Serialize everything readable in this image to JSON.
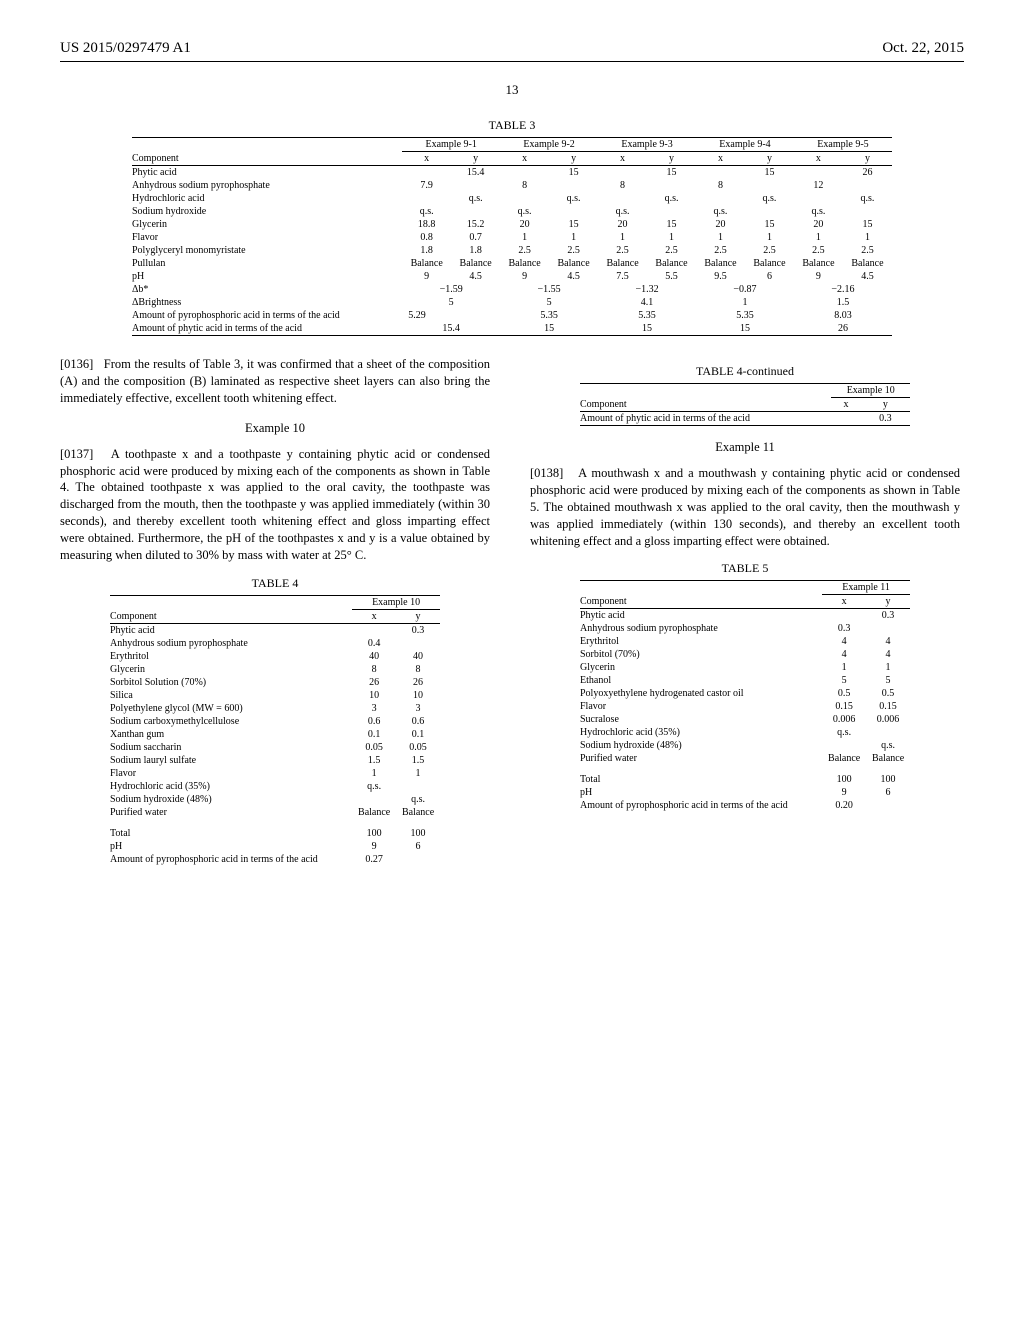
{
  "header": {
    "patent_no": "US 2015/0297479 A1",
    "date": "Oct. 22, 2015",
    "page": "13"
  },
  "table3": {
    "title": "TABLE 3",
    "group_headers": [
      "Example 9-1",
      "Example 9-2",
      "Example 9-3",
      "Example 9-4",
      "Example 9-5"
    ],
    "sub_headers": [
      "x",
      "y",
      "x",
      "y",
      "x",
      "y",
      "x",
      "y",
      "x",
      "y"
    ],
    "rows": [
      {
        "label": "Phytic acid",
        "vals": [
          "",
          "15.4",
          "",
          "15",
          "",
          "15",
          "",
          "15",
          "",
          "26"
        ]
      },
      {
        "label": "Anhydrous sodium pyrophosphate",
        "vals": [
          "7.9",
          "",
          "8",
          "",
          "8",
          "",
          "8",
          "",
          "12",
          ""
        ]
      },
      {
        "label": "Hydrochloric acid",
        "vals": [
          "",
          "q.s.",
          "",
          "q.s.",
          "",
          "q.s.",
          "",
          "q.s.",
          "",
          "q.s."
        ]
      },
      {
        "label": "Sodium hydroxide",
        "vals": [
          "q.s.",
          "",
          "q.s.",
          "",
          "q.s.",
          "",
          "q.s.",
          "",
          "q.s.",
          ""
        ]
      },
      {
        "label": "Glycerin",
        "vals": [
          "18.8",
          "15.2",
          "20",
          "15",
          "20",
          "15",
          "20",
          "15",
          "20",
          "15"
        ]
      },
      {
        "label": "Flavor",
        "vals": [
          "0.8",
          "0.7",
          "1",
          "1",
          "1",
          "1",
          "1",
          "1",
          "1",
          "1"
        ]
      },
      {
        "label": "Polyglyceryl monomyristate",
        "vals": [
          "1.8",
          "1.8",
          "2.5",
          "2.5",
          "2.5",
          "2.5",
          "2.5",
          "2.5",
          "2.5",
          "2.5"
        ]
      },
      {
        "label": "Pullulan",
        "vals": [
          "Balance",
          "Balance",
          "Balance",
          "Balance",
          "Balance",
          "Balance",
          "Balance",
          "Balance",
          "Balance",
          "Balance"
        ]
      },
      {
        "label": "pH",
        "vals": [
          "9",
          "4.5",
          "9",
          "4.5",
          "7.5",
          "5.5",
          "9.5",
          "6",
          "9",
          "4.5"
        ]
      }
    ],
    "span_rows": [
      {
        "label": "Δb*",
        "vals": [
          "−1.59",
          "−1.55",
          "−1.32",
          "−0.87",
          "−2.16"
        ]
      },
      {
        "label": "ΔBrightness",
        "vals": [
          "5",
          "5",
          "4.1",
          "1",
          "1.5"
        ]
      },
      {
        "label": "Amount of pyrophosphoric acid in terms of the acid",
        "vals": [
          "5.29",
          "5.35",
          "5.35",
          "5.35",
          "8.03"
        ],
        "left": true
      },
      {
        "label": "Amount of phytic acid in terms of the acid",
        "vals": [
          "15.4",
          "15",
          "15",
          "15",
          "26"
        ]
      }
    ]
  },
  "para0136": {
    "num": "[0136]",
    "text": "From the results of Table 3, it was confirmed that a sheet of the composition (A) and the composition (B) laminated as respective sheet layers can also bring the immediately effective, excellent tooth whitening effect."
  },
  "example10_heading": "Example 10",
  "para0137": {
    "num": "[0137]",
    "text": "A toothpaste x and a toothpaste y containing phytic acid or condensed phosphoric acid were produced by mixing each of the components as shown in Table 4. The obtained toothpaste x was applied to the oral cavity, the toothpaste was discharged from the mouth, then the toothpaste y was applied immediately (within 30 seconds), and thereby excellent tooth whitening effect and gloss imparting effect were obtained. Furthermore, the pH of the toothpastes x and y is a value obtained by measuring when diluted to 30% by mass with water at 25° C."
  },
  "table4": {
    "title": "TABLE 4",
    "group_header": "Example 10",
    "sub_headers": [
      "x",
      "y"
    ],
    "rows": [
      {
        "label": "Phytic acid",
        "vals": [
          "",
          "0.3"
        ]
      },
      {
        "label": "Anhydrous sodium pyrophosphate",
        "vals": [
          "0.4",
          ""
        ]
      },
      {
        "label": "Erythritol",
        "vals": [
          "40",
          "40"
        ]
      },
      {
        "label": "Glycerin",
        "vals": [
          "8",
          "8"
        ]
      },
      {
        "label": "Sorbitol Solution (70%)",
        "vals": [
          "26",
          "26"
        ]
      },
      {
        "label": "Silica",
        "vals": [
          "10",
          "10"
        ]
      },
      {
        "label": "Polyethylene glycol (MW = 600)",
        "vals": [
          "3",
          "3"
        ]
      },
      {
        "label": "Sodium carboxymethylcellulose",
        "vals": [
          "0.6",
          "0.6"
        ]
      },
      {
        "label": "Xanthan gum",
        "vals": [
          "0.1",
          "0.1"
        ]
      },
      {
        "label": "Sodium saccharin",
        "vals": [
          "0.05",
          "0.05"
        ]
      },
      {
        "label": "Sodium lauryl sulfate",
        "vals": [
          "1.5",
          "1.5"
        ]
      },
      {
        "label": "Flavor",
        "vals": [
          "1",
          "1"
        ]
      },
      {
        "label": "Hydrochloric acid (35%)",
        "vals": [
          "q.s.",
          ""
        ]
      },
      {
        "label": "Sodium hydroxide (48%)",
        "vals": [
          "",
          "q.s."
        ]
      },
      {
        "label": "Purified water",
        "vals": [
          "Balance",
          "Balance"
        ]
      }
    ],
    "rows2": [
      {
        "label": "Total",
        "vals": [
          "100",
          "100"
        ]
      },
      {
        "label": "pH",
        "vals": [
          "9",
          "6"
        ]
      },
      {
        "label": "Amount of pyrophosphoric acid in terms of the acid",
        "vals": [
          "0.27",
          ""
        ]
      }
    ]
  },
  "table4cont": {
    "title": "TABLE 4-continued",
    "group_header": "Example 10",
    "sub_headers": [
      "x",
      "y"
    ],
    "rows": [
      {
        "label": "Amount of phytic acid in terms of the acid",
        "vals": [
          "",
          "0.3"
        ]
      }
    ]
  },
  "example11_heading": "Example 11",
  "para0138": {
    "num": "[0138]",
    "text": "A mouthwash x and a mouthwash y containing phytic acid or condensed phosphoric acid were produced by mixing each of the components as shown in Table 5. The obtained mouthwash x was applied to the oral cavity, then the mouthwash y was applied immediately (within 130 seconds), and thereby an excellent tooth whitening effect and a gloss imparting effect were obtained."
  },
  "table5": {
    "title": "TABLE 5",
    "group_header": "Example 11",
    "sub_headers": [
      "x",
      "y"
    ],
    "rows": [
      {
        "label": "Phytic acid",
        "vals": [
          "",
          "0.3"
        ]
      },
      {
        "label": "Anhydrous sodium pyrophosphate",
        "vals": [
          "0.3",
          ""
        ]
      },
      {
        "label": "Erythritol",
        "vals": [
          "4",
          "4"
        ]
      },
      {
        "label": "Sorbitol (70%)",
        "vals": [
          "4",
          "4"
        ]
      },
      {
        "label": "Glycerin",
        "vals": [
          "1",
          "1"
        ]
      },
      {
        "label": "Ethanol",
        "vals": [
          "5",
          "5"
        ]
      },
      {
        "label": "Polyoxyethylene hydrogenated castor oil",
        "vals": [
          "0.5",
          "0.5"
        ]
      },
      {
        "label": "Flavor",
        "vals": [
          "0.15",
          "0.15"
        ]
      },
      {
        "label": "Sucralose",
        "vals": [
          "0.006",
          "0.006"
        ]
      },
      {
        "label": "Hydrochloric acid (35%)",
        "vals": [
          "q.s.",
          ""
        ]
      },
      {
        "label": "Sodium hydroxide (48%)",
        "vals": [
          "",
          "q.s."
        ]
      },
      {
        "label": "Purified water",
        "vals": [
          "Balance",
          "Balance"
        ]
      }
    ],
    "rows2": [
      {
        "label": "Total",
        "vals": [
          "100",
          "100"
        ]
      },
      {
        "label": "pH",
        "vals": [
          "9",
          "6"
        ]
      },
      {
        "label": "Amount of pyrophosphoric acid in terms of the acid",
        "vals": [
          "0.20",
          ""
        ]
      }
    ]
  },
  "component_label": "Component"
}
